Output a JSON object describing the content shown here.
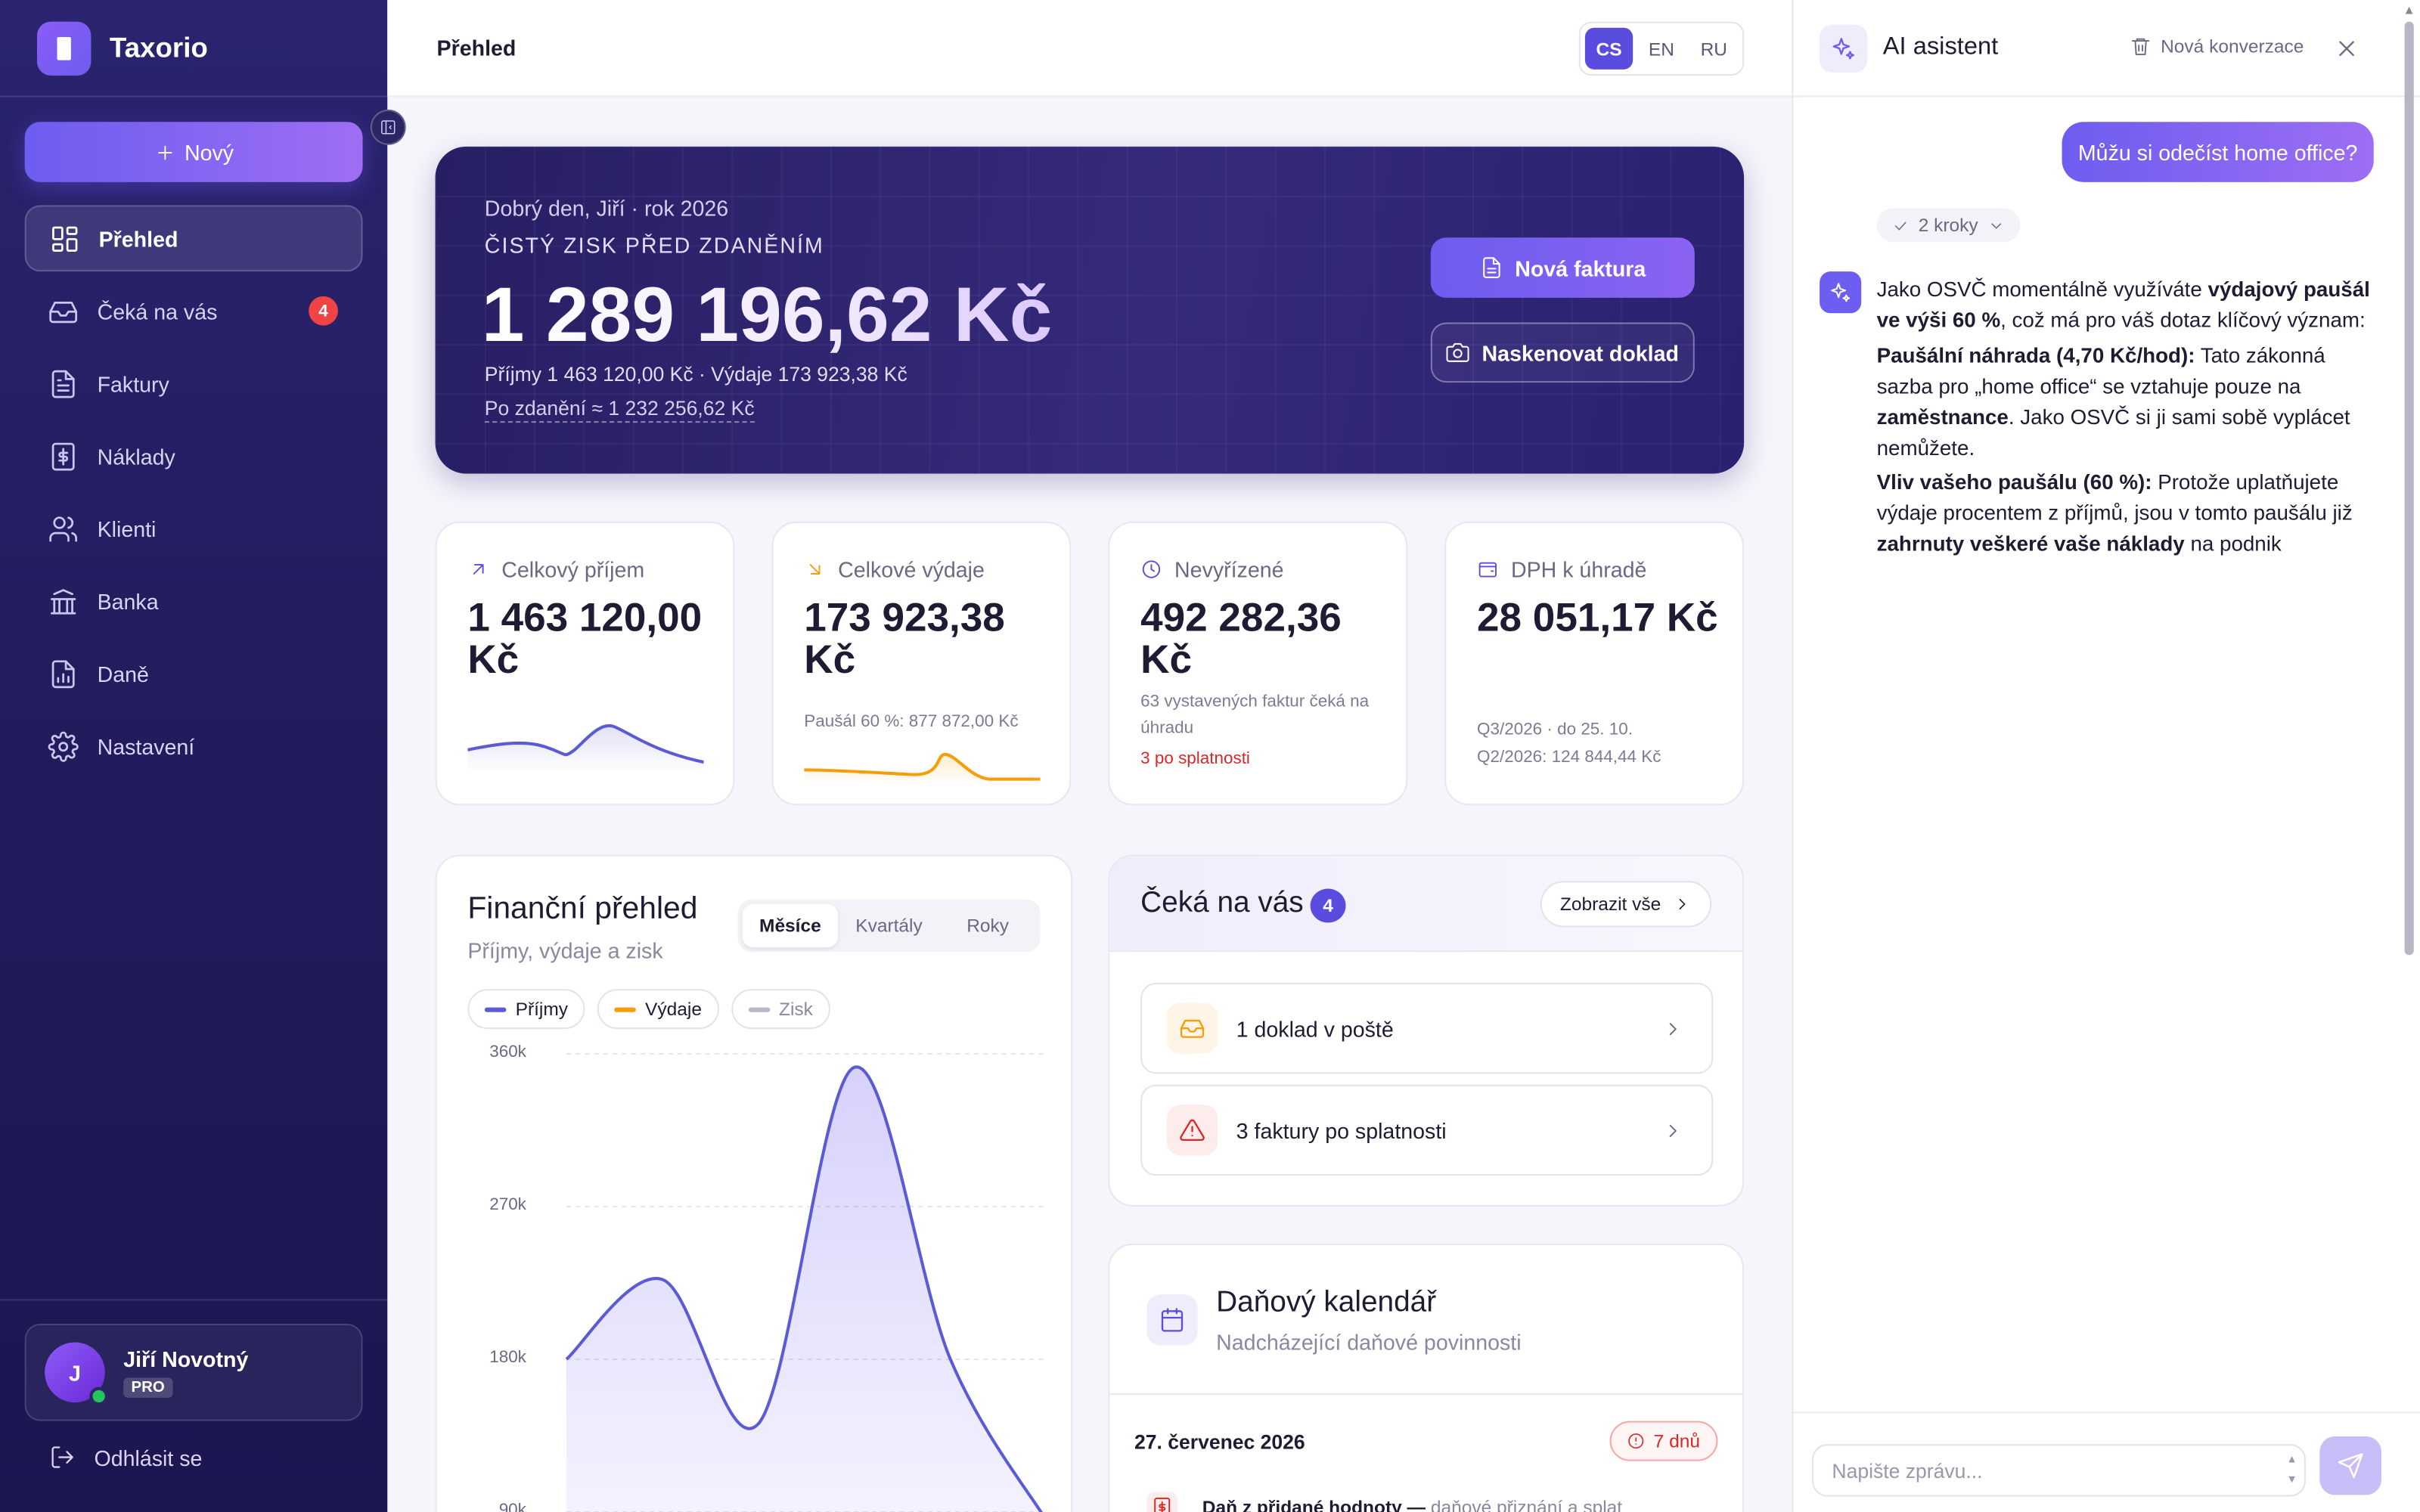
{
  "app": {
    "name": "Taxorio"
  },
  "sidebar": {
    "new_label": "Nový",
    "items": [
      {
        "label": "Přehled",
        "icon": "grid-icon",
        "active": true
      },
      {
        "label": "Čeká na vás",
        "icon": "inbox-icon",
        "badge": "4"
      },
      {
        "label": "Faktury",
        "icon": "file-icon"
      },
      {
        "label": "Náklady",
        "icon": "dollar-doc-icon"
      },
      {
        "label": "Klienti",
        "icon": "users-icon"
      },
      {
        "label": "Banka",
        "icon": "bank-icon"
      },
      {
        "label": "Daně",
        "icon": "tax-doc-icon"
      },
      {
        "label": "Nastavení",
        "icon": "gear-icon"
      }
    ],
    "user": {
      "initial": "J",
      "name": "Jiří Novotný",
      "plan": "PRO"
    },
    "logout_label": "Odhlásit se"
  },
  "header": {
    "title": "Přehled",
    "languages": [
      "CS",
      "EN",
      "RU"
    ],
    "active_language": "CS"
  },
  "hero": {
    "greeting": "Dobrý den, Jiří · rok 2026",
    "label": "ČISTÝ ZISK PŘED ZDANĚNÍM",
    "amount": "1 289 196,62 Kč",
    "subline": "Příjmy 1 463 120,00 Kč · Výdaje 173 923,38 Kč",
    "after_tax": "Po zdanění ≈ 1 232 256,62 Kč",
    "btn_invoice": "Nová faktura",
    "btn_scan": "Naskenovat doklad"
  },
  "stats": [
    {
      "label": "Celkový příjem",
      "value": "1 463 120,00 Kč",
      "icon": "arrow-up-right-icon",
      "color": "#5b4ce0"
    },
    {
      "label": "Celkové výdaje",
      "value": "173 923,38 Kč",
      "note": "Paušál 60 %: 877 872,00 Kč",
      "icon": "arrow-down-right-icon",
      "color": "#f59e0b"
    },
    {
      "label": "Nevyřízené",
      "value": "492 282,36 Kč",
      "note": "63 vystavených faktur čeká na úhradu",
      "alert": "3 po splatnosti",
      "icon": "clock-icon",
      "color": "#5b4ce0"
    },
    {
      "label": "DPH k úhradě",
      "value": "28 051,17 Kč",
      "note1": "Q3/2026 · do 25. 10.",
      "note2": "Q2/2026: 124 844,44 Kč",
      "icon": "wallet-icon",
      "color": "#5b4ce0"
    }
  ],
  "finance": {
    "title": "Finanční přehled",
    "subtitle": "Příjmy, výdaje a zisk",
    "periods": [
      "Měsíce",
      "Kvartály",
      "Roky"
    ],
    "active_period": "Měsíce",
    "legend": [
      {
        "label": "Příjmy",
        "color": "#5b5bd6"
      },
      {
        "label": "Výdaje",
        "color": "#f59e0b"
      },
      {
        "label": "Zisk",
        "color": "#b9b6c8"
      }
    ]
  },
  "chart_data": {
    "type": "area",
    "title": "Finanční přehled",
    "subtitle": "Příjmy, výdaje a zisk",
    "yticks": [
      "360k",
      "270k",
      "180k",
      "90k"
    ],
    "ylim": [
      90000,
      360000
    ],
    "grid": true,
    "series": [
      {
        "name": "Příjmy",
        "values": [
          180000,
          227000,
          142000,
          352000,
          180000,
          85000
        ]
      }
    ]
  },
  "waiting": {
    "title": "Čeká na vás",
    "count": "4",
    "show_all": "Zobrazit vše",
    "items": [
      {
        "label": "1 doklad v poště",
        "icon": "inbox-icon"
      },
      {
        "label": "3 faktury po splatnosti",
        "icon": "warning-icon"
      }
    ]
  },
  "calendar": {
    "title": "Daňový kalendář",
    "subtitle": "Nadcházející daňové povinnosti",
    "date": "27. červenec 2026",
    "days_left": "7 dnů",
    "item_title": "Daň z přidané hodnoty —",
    "item_desc": "daňové přiznání a splat"
  },
  "ai": {
    "title": "AI asistent",
    "new_conversation": "Nová konverzace",
    "user_message": "Můžu si odečíst home office?",
    "steps": "2 kroky",
    "input_placeholder": "Napište zprávu...",
    "answer": {
      "p1_a": "Jako OSVČ momentálně využíváte ",
      "p1_b": "výdajový paušál ve výši 60 %",
      "p1_c": ", což má pro váš dotaz klíčový význam:",
      "p2_a": "Paušální náhrada (4,70 Kč/hod):",
      "p2_b": " Tato zákonná sazba pro „home office“ se vztahuje pouze na ",
      "p2_c": "zaměstnance",
      "p2_d": ". Jako OSVČ si ji sami sobě vyplácet nemůžete.",
      "p3_a": "Vliv vašeho paušálu (60 %):",
      "p3_b": " Protože uplatňujete výdaje procentem z příjmů, jsou v tomto paušálu již ",
      "p3_c": "zahrnuty veškeré vaše náklady",
      "p3_d": " na podnik"
    }
  }
}
